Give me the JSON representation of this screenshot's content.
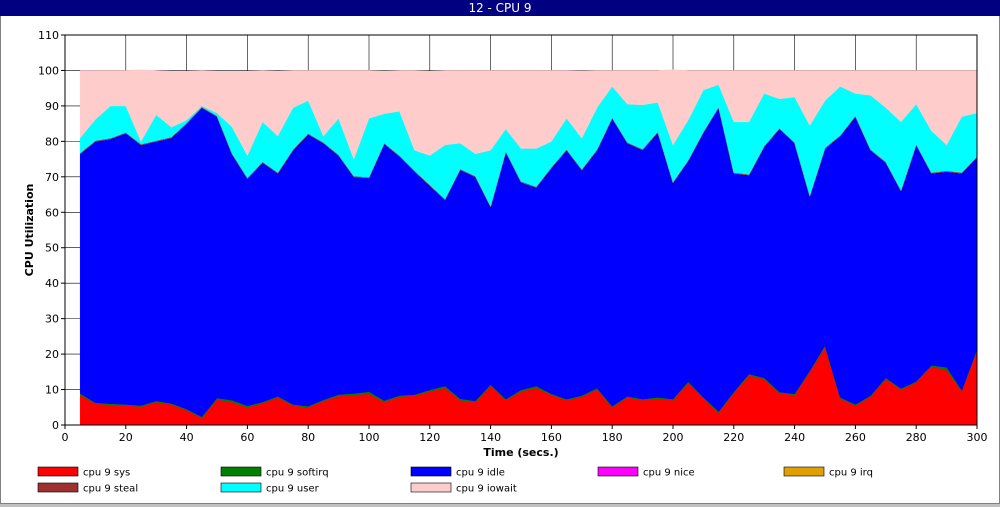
{
  "window": {
    "title": "12 - CPU 9"
  },
  "chart_data": {
    "type": "area",
    "stacked": true,
    "xlabel": "Time (secs.)",
    "ylabel": "CPU Utilization",
    "xlim": [
      0,
      300
    ],
    "ylim": [
      0,
      110
    ],
    "xticks": [
      0,
      20,
      40,
      60,
      80,
      100,
      120,
      140,
      160,
      180,
      200,
      220,
      240,
      260,
      280,
      300
    ],
    "yticks": [
      0,
      10,
      20,
      30,
      40,
      50,
      60,
      70,
      80,
      90,
      100,
      110
    ],
    "grid": true,
    "legend_position": "bottom",
    "x": [
      5,
      10,
      15,
      20,
      25,
      30,
      35,
      40,
      45,
      50,
      55,
      60,
      65,
      70,
      75,
      80,
      85,
      90,
      95,
      100,
      105,
      110,
      115,
      120,
      125,
      130,
      135,
      140,
      145,
      150,
      155,
      160,
      165,
      170,
      175,
      180,
      185,
      190,
      195,
      200,
      205,
      210,
      215,
      220,
      225,
      230,
      235,
      240,
      245,
      250,
      255,
      260,
      265,
      270,
      275,
      280,
      285,
      290,
      295,
      300
    ],
    "series": [
      {
        "name": "cpu 9 sys",
        "color": "#ff0000",
        "values": [
          8.5,
          6,
          5.7,
          5.5,
          5.2,
          6.5,
          5.8,
          4.2,
          2,
          7.2,
          6.5,
          5,
          6.2,
          7.8,
          5.5,
          5,
          6.8,
          8.2,
          8.5,
          8.8,
          6.5,
          8,
          8.3,
          9.5,
          10.5,
          7,
          6.5,
          11,
          7,
          9.5,
          10.5,
          8.5,
          7,
          8,
          10,
          5,
          7.8,
          7,
          7.5,
          7,
          11.8,
          7.5,
          3.5,
          9,
          14,
          13,
          9,
          8.5,
          15,
          22,
          7.5,
          5.5,
          8,
          13,
          10,
          12,
          16.5,
          15.5,
          9.5,
          21
        ]
      },
      {
        "name": "cpu 9 softirq",
        "color": "#008000",
        "values": [
          0.4,
          0.3,
          0.3,
          0.3,
          0.3,
          0.3,
          0.3,
          0.3,
          0.3,
          0.4,
          0.5,
          0.4,
          0.3,
          0.3,
          0.3,
          0.3,
          0.3,
          0.4,
          0.4,
          0.6,
          0.4,
          0.3,
          0.3,
          0.4,
          0.5,
          0.4,
          0.3,
          0.4,
          0.3,
          0.4,
          0.5,
          0.3,
          0.3,
          0.3,
          0.4,
          0.3,
          0.3,
          0.3,
          0.3,
          0.3,
          0.4,
          0.3,
          0.3,
          0.3,
          0.4,
          0.3,
          0.3,
          0.3,
          0.3,
          0.4,
          0.3,
          0.3,
          0.3,
          0.3,
          0.3,
          0.3,
          0.3,
          0.8,
          0.3,
          0.3
        ]
      },
      {
        "name": "cpu 9 idle",
        "color": "#0000ff",
        "values": [
          67.6,
          73.7,
          74.7,
          76.5,
          73.5,
          73.2,
          74.9,
          80.5,
          87.2,
          79.4,
          69.3,
          64.1,
          67.5,
          62.9,
          71.7,
          76.7,
          72.4,
          67.4,
          61.1,
          60.3,
          72.4,
          67.5,
          62.9,
          57.6,
          52.5,
          64.6,
          63.2,
          50.1,
          69.7,
          58.6,
          56,
          63.7,
          70.2,
          63.6,
          67.1,
          81.2,
          71.4,
          70.3,
          74.7,
          61,
          62.3,
          74.7,
          85.7,
          61.7,
          56.1,
          65.2,
          74.2,
          70.7,
          49.2,
          55.6,
          73.7,
          81.2,
          69.2,
          60.7,
          55.7,
          66.7,
          54.2,
          55.2,
          61.2,
          54.2
        ]
      },
      {
        "name": "cpu 9 nice",
        "color": "#ff00ff",
        "values": [
          0,
          0,
          0,
          0,
          0,
          0,
          0,
          0,
          0,
          0,
          0,
          0,
          0,
          0,
          0,
          0,
          0,
          0,
          0,
          0,
          0,
          0,
          0,
          0,
          0,
          0,
          0,
          0,
          0,
          0,
          0,
          0,
          0,
          0,
          0,
          0,
          0,
          0,
          0,
          0,
          0,
          0,
          0,
          0,
          0,
          0,
          0,
          0,
          0,
          0,
          0,
          0,
          0,
          0,
          0,
          0,
          0,
          0,
          0,
          0
        ]
      },
      {
        "name": "cpu 9 irq",
        "color": "#e0a000",
        "values": [
          0,
          0,
          0,
          0,
          0,
          0,
          0,
          0,
          0,
          0,
          0,
          0,
          0,
          0,
          0,
          0,
          0,
          0,
          0,
          0,
          0,
          0,
          0,
          0,
          0,
          0,
          0,
          0,
          0,
          0,
          0,
          0,
          0,
          0,
          0,
          0,
          0,
          0,
          0,
          0,
          0,
          0,
          0,
          0,
          0,
          0,
          0,
          0,
          0,
          0,
          0,
          0,
          0,
          0,
          0,
          0,
          0,
          0,
          0,
          0
        ]
      },
      {
        "name": "cpu 9 steal",
        "color": "#a03030",
        "values": [
          0.2,
          0.2,
          0.2,
          0.2,
          0.2,
          0.2,
          0.2,
          0.2,
          0.2,
          0.2,
          0.2,
          0.2,
          0.2,
          0.2,
          0.2,
          0.2,
          0.2,
          0.2,
          0.2,
          0.2,
          0.2,
          0.2,
          0.2,
          0.2,
          0.2,
          0.2,
          0.2,
          0.2,
          0.2,
          0.2,
          0.2,
          0.2,
          0.2,
          0.2,
          0.2,
          0.2,
          0.2,
          0.2,
          0.2,
          0.2,
          0.2,
          0.2,
          0.2,
          0.2,
          0.2,
          0.2,
          0.2,
          0.2,
          0.2,
          0.2,
          0.2,
          0.2,
          0.2,
          0.2,
          0.2,
          0.2,
          0.2,
          0.2,
          0.2,
          0.2
        ]
      },
      {
        "name": "cpu 9 user",
        "color": "#00ffff",
        "values": [
          4.3,
          6,
          9.1,
          7.5,
          0.8,
          7.3,
          2.8,
          0.8,
          0.3,
          0.8,
          7.5,
          6.3,
          11.3,
          10.3,
          11.8,
          9.3,
          1.8,
          10.3,
          4.8,
          16.6,
          8.3,
          12.5,
          5.8,
          8.3,
          15.3,
          7.3,
          6.3,
          15.8,
          6.3,
          9.3,
          10.8,
          7.3,
          8.8,
          8.8,
          11.8,
          8.8,
          10.8,
          12.5,
          8.3,
          10.5,
          11.3,
          11.8,
          6.3,
          14.3,
          14.8,
          14.8,
          8.3,
          12.8,
          19.8,
          13.3,
          13.8,
          6.3,
          15.3,
          15.3,
          19.3,
          11.3,
          11.8,
          7.3,
          15.8,
          12.3
        ]
      },
      {
        "name": "cpu 9 iowait",
        "color": "#ffcccc",
        "values": [
          19,
          13.8,
          10,
          10,
          20.2,
          12.5,
          15.8,
          13.8,
          10,
          11.8,
          15.8,
          23.8,
          14.5,
          18.3,
          10.5,
          8.5,
          18.5,
          13.5,
          25,
          13.5,
          12,
          11.5,
          22.5,
          23.8,
          21,
          20.5,
          23.5,
          22.5,
          16.5,
          22,
          22,
          20,
          13.5,
          19,
          10.5,
          4.5,
          9.5,
          9.7,
          9.0,
          21.2,
          14.0,
          5.5,
          4,
          14.5,
          14.5,
          6.5,
          8,
          7.5,
          15.5,
          8.5,
          4.5,
          6.5,
          7,
          10.5,
          14.5,
          9.5,
          17,
          21,
          13,
          12
        ]
      }
    ]
  }
}
